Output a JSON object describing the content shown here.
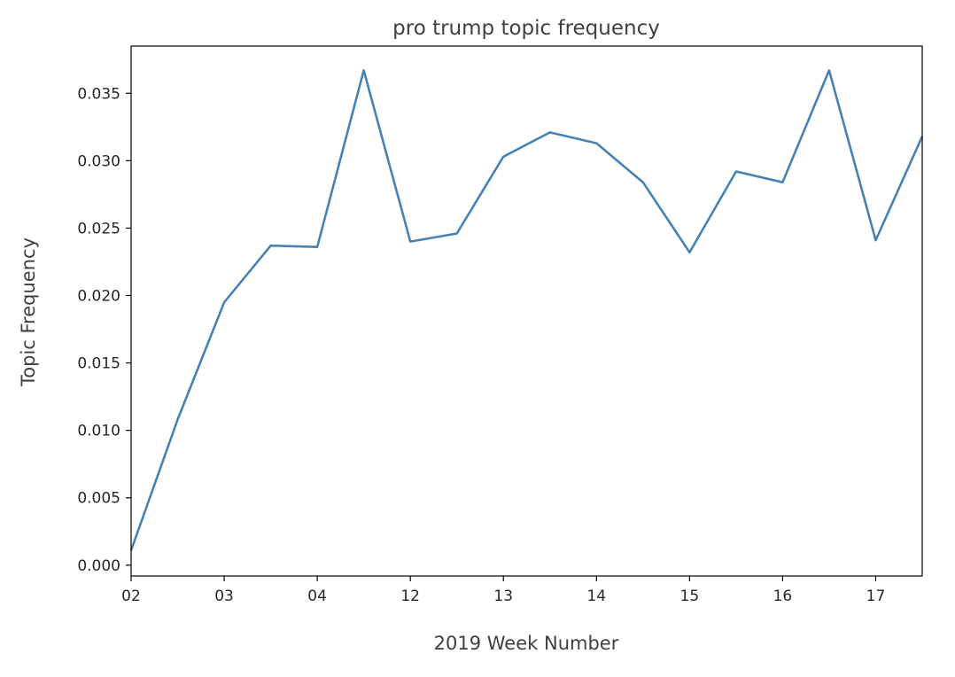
{
  "chart_data": {
    "type": "line",
    "title": "pro trump topic frequency",
    "xlabel": "2019 Week Number",
    "ylabel": "Topic Frequency",
    "x_tick_labels": [
      "02",
      "03",
      "04",
      "12",
      "13",
      "14",
      "15",
      "16",
      "17"
    ],
    "x": [
      0,
      0.5,
      1,
      1.5,
      2,
      2.5,
      3,
      3.5,
      4,
      4.5,
      5,
      5.5,
      6,
      6.5,
      7,
      7.5,
      8,
      8.5
    ],
    "series": [
      {
        "values": [
          0.0011,
          0.0108,
          0.0195,
          0.0237,
          0.0236,
          0.0367,
          0.024,
          0.0246,
          0.0303,
          0.0321,
          0.0313,
          0.0284,
          0.0232,
          0.0292,
          0.0284,
          0.0367,
          0.0241,
          0.0318
        ],
        "color": "#4682b4"
      }
    ],
    "xlim": [
      0,
      8.5
    ],
    "ylim": [
      -0.0008,
      0.0385
    ],
    "y_ticks": [
      "0.000",
      "0.005",
      "0.010",
      "0.015",
      "0.020",
      "0.025",
      "0.030",
      "0.035"
    ],
    "grid": false,
    "legend": "none"
  }
}
